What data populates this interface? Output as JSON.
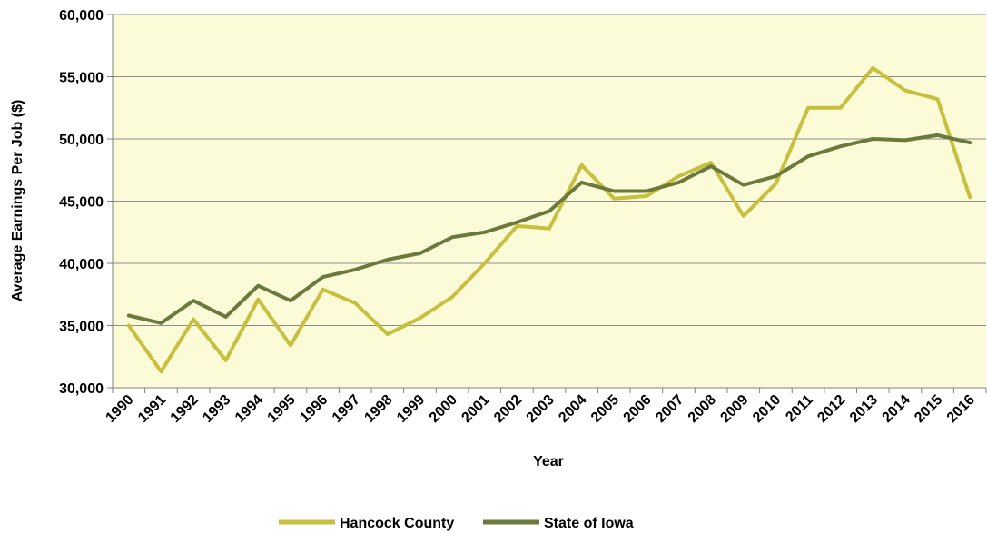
{
  "chart_data": {
    "type": "line",
    "title": "",
    "xlabel": "Year",
    "ylabel": "Average Earnings Per Job ($)",
    "ylim": [
      30000,
      60000
    ],
    "yticks": [
      30000,
      35000,
      40000,
      45000,
      50000,
      55000,
      60000
    ],
    "ytick_labels": [
      "30,000",
      "35,000",
      "40,000",
      "45,000",
      "50,000",
      "55,000",
      "60,000"
    ],
    "categories": [
      "1990",
      "1991",
      "1992",
      "1993",
      "1994",
      "1995",
      "1996",
      "1997",
      "1998",
      "1999",
      "2000",
      "2001",
      "2002",
      "2003",
      "2004",
      "2005",
      "2006",
      "2007",
      "2008",
      "2009",
      "2010",
      "2011",
      "2012",
      "2013",
      "2014",
      "2015",
      "2016"
    ],
    "grid": true,
    "legend_position": "bottom",
    "plot_background": "#fbfbd7",
    "series": [
      {
        "name": "Hancock County",
        "color": "#c8bf3e",
        "values": [
          35000,
          31300,
          35500,
          32200,
          37100,
          33400,
          37900,
          36800,
          34300,
          35600,
          37300,
          40000,
          43000,
          42800,
          47900,
          45200,
          45400,
          47000,
          48100,
          43800,
          46400,
          52500,
          52500,
          55700,
          53900,
          53200,
          45300
        ]
      },
      {
        "name": "State of Iowa",
        "color": "#6b7a3c",
        "values": [
          35800,
          35200,
          37000,
          35700,
          38200,
          37000,
          38900,
          39500,
          40300,
          40800,
          42100,
          42500,
          43300,
          44200,
          46500,
          45800,
          45800,
          46500,
          47800,
          46300,
          47000,
          48600,
          49400,
          50000,
          49900,
          50300,
          49700
        ]
      }
    ]
  }
}
